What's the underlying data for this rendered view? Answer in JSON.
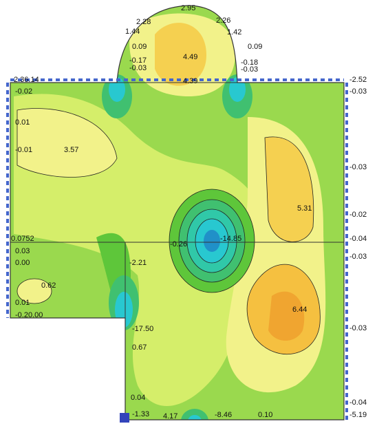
{
  "labels": [
    "2.95",
    "2.28",
    "2.26",
    "1.44",
    "1.42",
    "0.09",
    "0.09",
    "-0.17",
    "-0.18",
    "-0.03",
    "-0.03",
    "4.49",
    "4.39",
    "2.36.14",
    "-0.02",
    "0.01",
    "-0.01",
    "3.57",
    "-2.52",
    "-0.03",
    "-0.03",
    "-0.02",
    "-0.04",
    "-0.03",
    "5.31",
    "0.0752",
    "0.03",
    "0.00",
    "0.62",
    "0.01",
    "-0.20.00",
    "-2.21",
    "-0.26",
    "-14.85",
    "6.44",
    "-0.03",
    "-17.50",
    "0.67",
    "0.04",
    "-1.33",
    "4.17",
    "-8.46",
    "0.10",
    "-0.04",
    "-5.19"
  ]
}
